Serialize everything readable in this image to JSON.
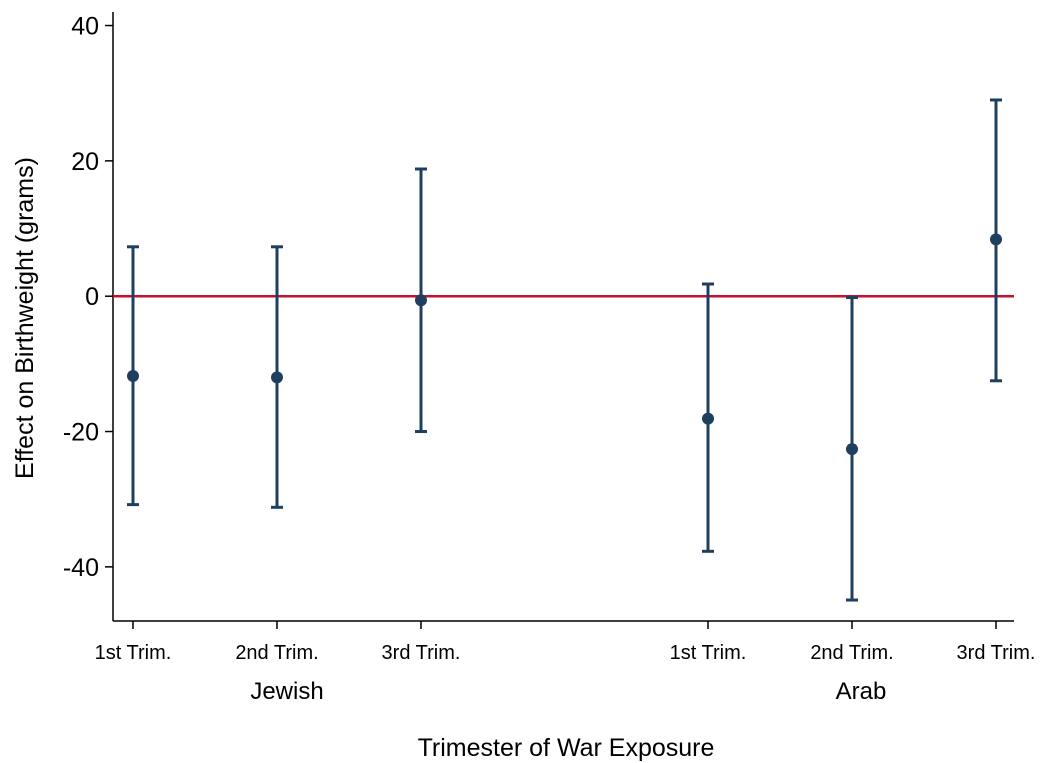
{
  "chart_data": {
    "type": "scatter",
    "subtype": "point-with-confidence-intervals",
    "xlabel": "Trimester of War Exposure",
    "ylabel": "Effect on Birthweight (grams)",
    "ylim": [
      -48,
      42
    ],
    "yticks": [
      -40,
      -20,
      0,
      20,
      40
    ],
    "reference_line": {
      "y": 0,
      "color": "#c8102e"
    },
    "grid": false,
    "marker_color": "#1f3f5f",
    "groups": [
      {
        "label": "Jewish",
        "points": [
          {
            "label": "1st Trim.",
            "estimate": -11.8,
            "ci_low": -30.8,
            "ci_high": 7.3
          },
          {
            "label": "2nd Trim.",
            "estimate": -12.0,
            "ci_low": -31.2,
            "ci_high": 7.3
          },
          {
            "label": "3rd Trim.",
            "estimate": -0.6,
            "ci_low": -20.0,
            "ci_high": 18.8
          }
        ]
      },
      {
        "label": "Arab",
        "points": [
          {
            "label": "1st Trim.",
            "estimate": -18.1,
            "ci_low": -37.7,
            "ci_high": 1.8
          },
          {
            "label": "2nd Trim.",
            "estimate": -22.6,
            "ci_low": -44.9,
            "ci_high": -0.2
          },
          {
            "label": "3rd Trim.",
            "estimate": 8.4,
            "ci_low": -12.5,
            "ci_high": 29.0
          }
        ]
      }
    ]
  }
}
